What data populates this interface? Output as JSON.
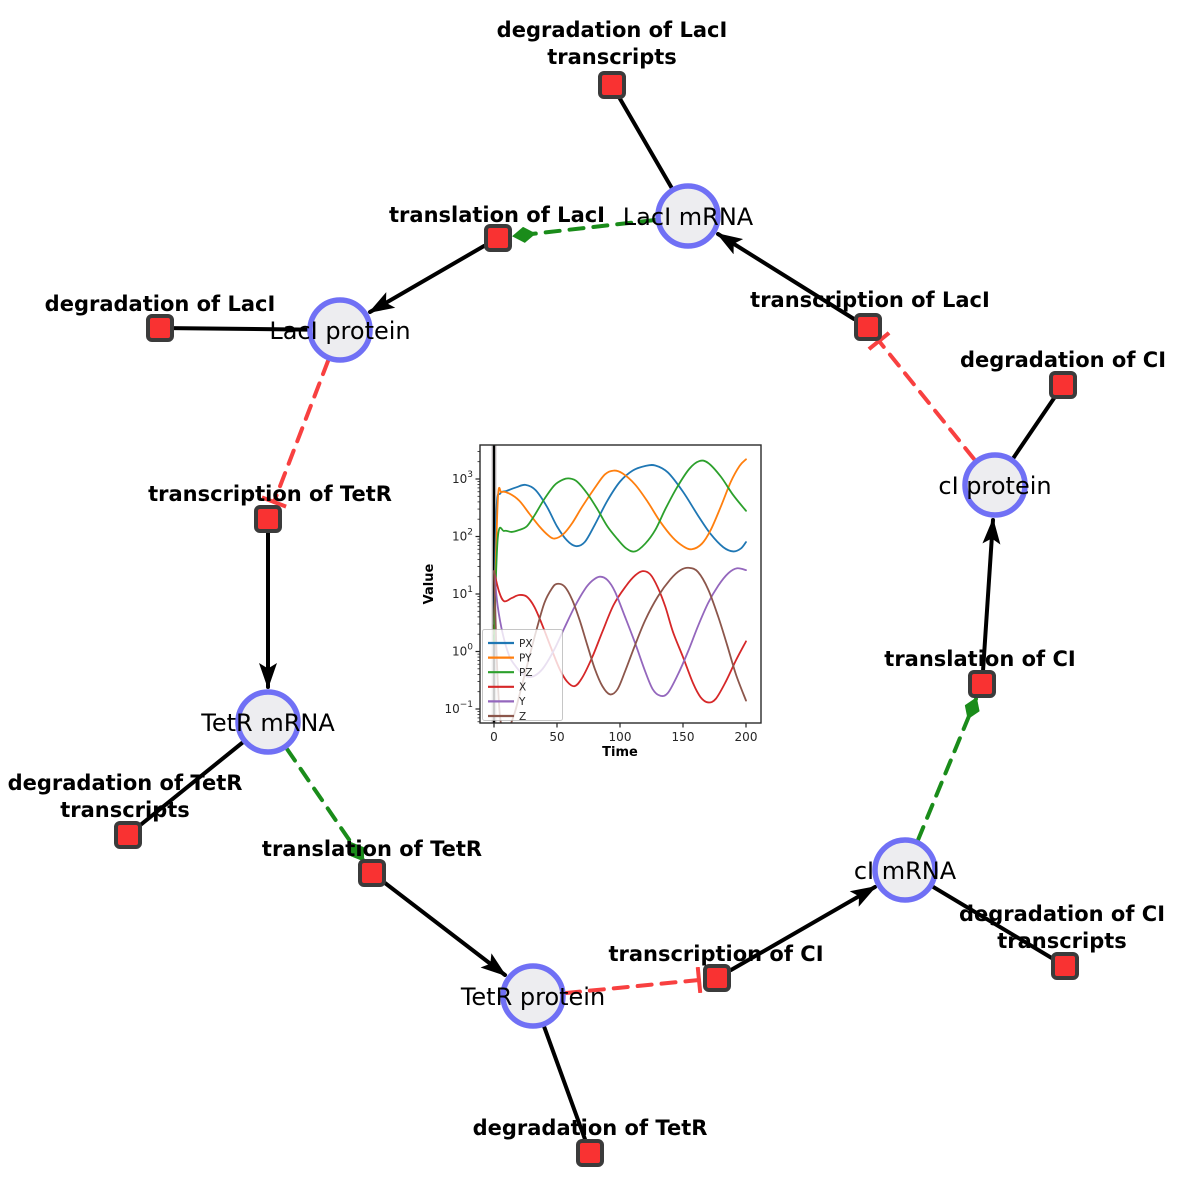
{
  "network": {
    "species": [
      {
        "label": "LacI mRNA"
      },
      {
        "label": "LacI protein"
      },
      {
        "label": "TetR mRNA"
      },
      {
        "label": "TetR protein"
      },
      {
        "label": "cI mRNA"
      },
      {
        "label": "cI protein"
      }
    ],
    "reactions": [
      {
        "lines": [
          "degradation of LacI",
          "transcripts"
        ]
      },
      {
        "lines": [
          "translation of LacI"
        ]
      },
      {
        "lines": [
          "degradation of LacI"
        ]
      },
      {
        "lines": [
          "transcription of TetR"
        ]
      },
      {
        "lines": [
          "degradation of TetR",
          "transcripts"
        ]
      },
      {
        "lines": [
          "translation of TetR"
        ]
      },
      {
        "lines": [
          "degradation of TetR"
        ]
      },
      {
        "lines": [
          "transcription of CI"
        ]
      },
      {
        "lines": [
          "degradation of CI",
          "transcripts"
        ]
      },
      {
        "lines": [
          "translation of CI"
        ]
      },
      {
        "lines": [
          "transcription of LacI"
        ]
      },
      {
        "lines": [
          "degradation of CI"
        ]
      }
    ],
    "colors": {
      "species_fill": "#ededf0",
      "species_stroke": "#7070f5",
      "reaction_fill": "#f93232",
      "reaction_stroke": "#3b3b3b",
      "edge_black": "#000000",
      "edge_green": "#1a8c1a",
      "edge_red": "#f84040"
    }
  },
  "chart_data": {
    "type": "line",
    "title": "",
    "xlabel": "Time",
    "ylabel": "Value",
    "x_ticks": [
      0,
      50,
      100,
      150,
      200
    ],
    "y_ticks_exp": [
      3,
      2,
      1,
      0,
      -1
    ],
    "xlim": [
      -11,
      213
    ],
    "ylog": true,
    "ylim_exp": [
      -1.25,
      3.6
    ],
    "grid": false,
    "legend_position": "lower left",
    "annotations": [
      {
        "type": "vline",
        "x": 0,
        "color": "#000000"
      }
    ],
    "series": [
      {
        "name": "PX",
        "color": "#1f77b4",
        "points": [
          [
            0,
            3
          ],
          [
            2,
            300
          ],
          [
            5,
            560
          ],
          [
            10,
            620
          ],
          [
            18,
            720
          ],
          [
            25,
            790
          ],
          [
            33,
            640
          ],
          [
            42,
            330
          ],
          [
            50,
            150
          ],
          [
            58,
            85
          ],
          [
            65,
            68
          ],
          [
            72,
            80
          ],
          [
            80,
            160
          ],
          [
            90,
            420
          ],
          [
            100,
            900
          ],
          [
            110,
            1400
          ],
          [
            120,
            1680
          ],
          [
            128,
            1720
          ],
          [
            138,
            1300
          ],
          [
            150,
            600
          ],
          [
            162,
            230
          ],
          [
            172,
            110
          ],
          [
            182,
            65
          ],
          [
            190,
            55
          ],
          [
            196,
            62
          ],
          [
            200,
            80
          ]
        ]
      },
      {
        "name": "PY",
        "color": "#ff7f0e",
        "points": [
          [
            0,
            2
          ],
          [
            3,
            420
          ],
          [
            6,
            590
          ],
          [
            12,
            560
          ],
          [
            20,
            420
          ],
          [
            28,
            250
          ],
          [
            36,
            150
          ],
          [
            43,
            105
          ],
          [
            48,
            92
          ],
          [
            55,
            110
          ],
          [
            62,
            170
          ],
          [
            70,
            330
          ],
          [
            80,
            700
          ],
          [
            88,
            1200
          ],
          [
            95,
            1400
          ],
          [
            102,
            1250
          ],
          [
            112,
            800
          ],
          [
            122,
            400
          ],
          [
            132,
            180
          ],
          [
            142,
            95
          ],
          [
            150,
            68
          ],
          [
            157,
            60
          ],
          [
            165,
            75
          ],
          [
            172,
            130
          ],
          [
            180,
            330
          ],
          [
            188,
            900
          ],
          [
            195,
            1700
          ],
          [
            200,
            2200
          ]
        ]
      },
      {
        "name": "PZ",
        "color": "#2ca02c",
        "points": [
          [
            0,
            1.5
          ],
          [
            3,
            95
          ],
          [
            8,
            125
          ],
          [
            14,
            120
          ],
          [
            20,
            130
          ],
          [
            26,
            150
          ],
          [
            32,
            230
          ],
          [
            40,
            450
          ],
          [
            48,
            780
          ],
          [
            55,
            980
          ],
          [
            60,
            1020
          ],
          [
            66,
            900
          ],
          [
            74,
            560
          ],
          [
            82,
            300
          ],
          [
            90,
            150
          ],
          [
            98,
            90
          ],
          [
            105,
            62
          ],
          [
            112,
            55
          ],
          [
            120,
            75
          ],
          [
            128,
            130
          ],
          [
            136,
            300
          ],
          [
            145,
            700
          ],
          [
            155,
            1500
          ],
          [
            163,
            2050
          ],
          [
            170,
            1900
          ],
          [
            180,
            1100
          ],
          [
            190,
            520
          ],
          [
            200,
            280
          ]
        ]
      },
      {
        "name": "X",
        "color": "#d62728",
        "points": [
          [
            0,
            25
          ],
          [
            4,
            11
          ],
          [
            8,
            7.5
          ],
          [
            14,
            8.5
          ],
          [
            20,
            9.6
          ],
          [
            26,
            9
          ],
          [
            32,
            6
          ],
          [
            38,
            3
          ],
          [
            45,
            1.2
          ],
          [
            52,
            0.5
          ],
          [
            58,
            0.3
          ],
          [
            64,
            0.25
          ],
          [
            70,
            0.35
          ],
          [
            78,
            0.8
          ],
          [
            86,
            2.2
          ],
          [
            95,
            6.5
          ],
          [
            105,
            14
          ],
          [
            112,
            21
          ],
          [
            118,
            25
          ],
          [
            124,
            22
          ],
          [
            130,
            13
          ],
          [
            136,
            6
          ],
          [
            142,
            2.2
          ],
          [
            150,
            0.8
          ],
          [
            158,
            0.28
          ],
          [
            164,
            0.16
          ],
          [
            170,
            0.13
          ],
          [
            176,
            0.15
          ],
          [
            184,
            0.3
          ],
          [
            192,
            0.7
          ],
          [
            200,
            1.5
          ]
        ]
      },
      {
        "name": "Y",
        "color": "#9467bd",
        "points": [
          [
            0,
            25
          ],
          [
            3,
            6
          ],
          [
            7,
            2
          ],
          [
            12,
            0.85
          ],
          [
            16,
            0.6
          ],
          [
            22,
            0.42
          ],
          [
            28,
            0.36
          ],
          [
            34,
            0.4
          ],
          [
            40,
            0.55
          ],
          [
            48,
            1.1
          ],
          [
            56,
            2.6
          ],
          [
            64,
            6
          ],
          [
            72,
            12
          ],
          [
            78,
            17
          ],
          [
            84,
            20
          ],
          [
            90,
            17.5
          ],
          [
            96,
            11
          ],
          [
            104,
            4
          ],
          [
            112,
            1.4
          ],
          [
            120,
            0.45
          ],
          [
            126,
            0.22
          ],
          [
            132,
            0.17
          ],
          [
            138,
            0.19
          ],
          [
            146,
            0.4
          ],
          [
            154,
            1
          ],
          [
            162,
            2.8
          ],
          [
            170,
            7
          ],
          [
            178,
            14
          ],
          [
            186,
            23
          ],
          [
            193,
            28
          ],
          [
            200,
            26
          ]
        ]
      },
      {
        "name": "Z",
        "color": "#8c564b",
        "points": [
          [
            0,
            25
          ],
          [
            2,
            1
          ],
          [
            4,
            0.12
          ],
          [
            6,
            0.05
          ],
          [
            10,
            0.04
          ],
          [
            16,
            0.08
          ],
          [
            22,
            0.25
          ],
          [
            28,
            0.8
          ],
          [
            34,
            2.5
          ],
          [
            40,
            7
          ],
          [
            46,
            12.5
          ],
          [
            50,
            15
          ],
          [
            56,
            13.5
          ],
          [
            62,
            8
          ],
          [
            68,
            3.5
          ],
          [
            74,
            1.3
          ],
          [
            80,
            0.5
          ],
          [
            86,
            0.25
          ],
          [
            92,
            0.18
          ],
          [
            98,
            0.22
          ],
          [
            104,
            0.45
          ],
          [
            112,
            1.3
          ],
          [
            120,
            3.5
          ],
          [
            130,
            9
          ],
          [
            140,
            18
          ],
          [
            148,
            26
          ],
          [
            155,
            28.5
          ],
          [
            162,
            24
          ],
          [
            170,
            12
          ],
          [
            178,
            4
          ],
          [
            185,
            1.3
          ],
          [
            192,
            0.4
          ],
          [
            200,
            0.14
          ]
        ]
      }
    ]
  }
}
